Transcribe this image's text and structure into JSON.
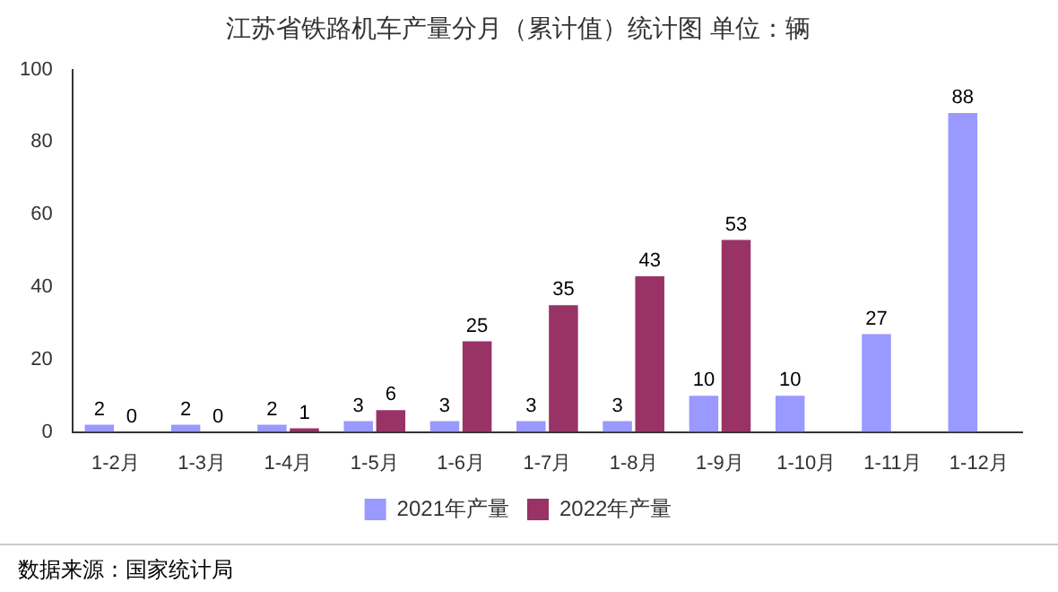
{
  "chart_data": {
    "type": "bar",
    "title": "江苏省铁路机车产量分月（累计值）统计图 单位：辆",
    "categories": [
      "1-2月",
      "1-3月",
      "1-4月",
      "1-5月",
      "1-6月",
      "1-7月",
      "1-8月",
      "1-9月",
      "1-10月",
      "1-11月",
      "1-12月"
    ],
    "series": [
      {
        "name": "2021年产量",
        "color": "#9999ff",
        "values": [
          2,
          2,
          2,
          3,
          3,
          3,
          3,
          10,
          10,
          27,
          88
        ]
      },
      {
        "name": "2022年产量",
        "color": "#993366",
        "values": [
          0,
          0,
          1,
          6,
          25,
          35,
          43,
          53,
          null,
          null,
          null
        ]
      }
    ],
    "ylim": [
      0,
      100
    ],
    "yticks": [
      0,
      20,
      40,
      60,
      80,
      100
    ],
    "grid": false,
    "legend": "bottom",
    "data_labels": true,
    "annotations": [
      "数据来源：国家统计局"
    ]
  }
}
